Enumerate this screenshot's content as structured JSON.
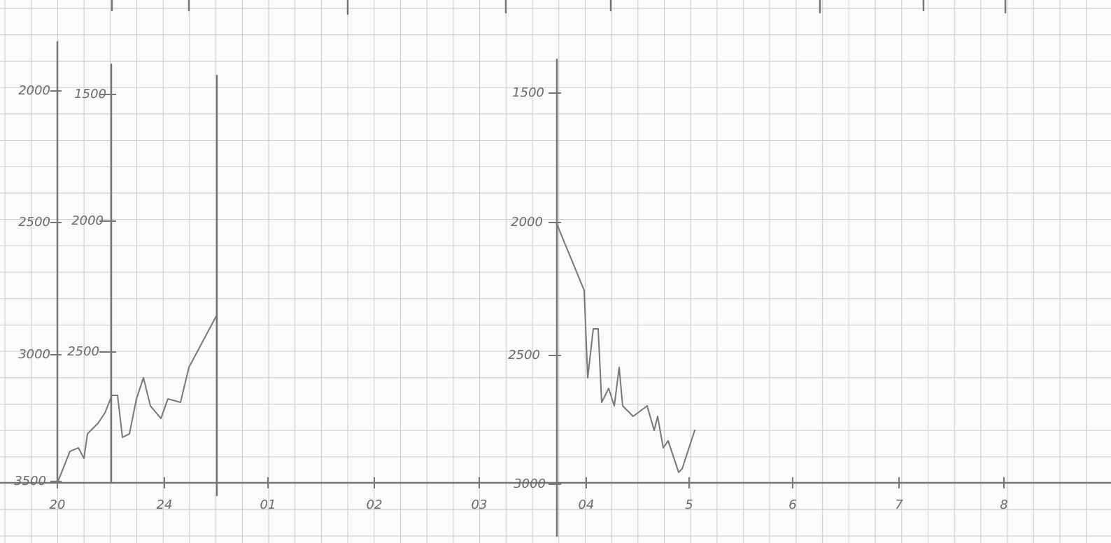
{
  "left_axis": {
    "labels": [
      "2000",
      "2500",
      "3000",
      "3500"
    ]
  },
  "inner_axis": {
    "labels": [
      "1500",
      "2000",
      "2500"
    ]
  },
  "right_axis": {
    "labels": [
      "1500",
      "2000",
      "2500",
      "3000"
    ]
  },
  "x_axis": {
    "labels": [
      "20",
      "24",
      "01",
      "02",
      "03",
      "04",
      "5",
      "6",
      "7",
      "8"
    ]
  }
}
